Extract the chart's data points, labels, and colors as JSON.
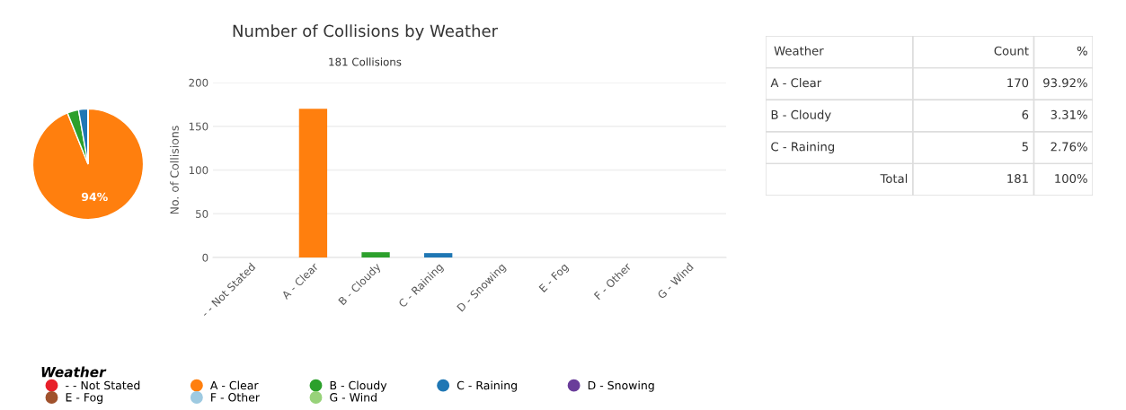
{
  "chart_data": [
    {
      "type": "pie",
      "categories": [
        "- - Not Stated",
        "A - Clear",
        "B - Cloudy",
        "C - Raining",
        "D - Snowing",
        "E - Fog",
        "F - Other",
        "G - Wind"
      ],
      "values": [
        0,
        93.92,
        3.31,
        2.77,
        0,
        0,
        0,
        0
      ],
      "colors": [
        "#e8202a",
        "#ff7f0e",
        "#2ca02c",
        "#1f77b4",
        "#6a3d9a",
        "#a0522d",
        "#9ecae1",
        "#98d27a"
      ],
      "value_labels": [
        null,
        "94%",
        null,
        null,
        null,
        null,
        null,
        null
      ],
      "legend": "bottom",
      "legend_title": "Weather"
    },
    {
      "type": "bar",
      "title": "Number of Collisions by Weather",
      "subtitle": "181 Collisions",
      "ylabel": "No. of Collisions",
      "categories": [
        "- - Not Stated",
        "A - Clear",
        "B - Cloudy",
        "C - Raining",
        "D - Snowing",
        "E - Fog",
        "F - Other",
        "G - Wind"
      ],
      "values": [
        0,
        170,
        6,
        5,
        0,
        0,
        0,
        0
      ],
      "colors": [
        "#e8202a",
        "#ff7f0e",
        "#2ca02c",
        "#1f77b4",
        "#6a3d9a",
        "#a0522d",
        "#9ecae1",
        "#98d27a"
      ],
      "ylim": [
        0,
        200
      ],
      "yticks": [
        0,
        50,
        100,
        150,
        200
      ],
      "grid": "y"
    },
    {
      "type": "other",
      "categories": [
        "Weather",
        "Count",
        "%"
      ],
      "cell_labels": [
        [
          "A - Clear",
          "170",
          "93.92%"
        ],
        [
          "B - Cloudy",
          "6",
          "3.31%"
        ],
        [
          "C - Raining",
          "5",
          "2.76%"
        ],
        [
          "Total",
          "181",
          "100%"
        ]
      ]
    }
  ]
}
